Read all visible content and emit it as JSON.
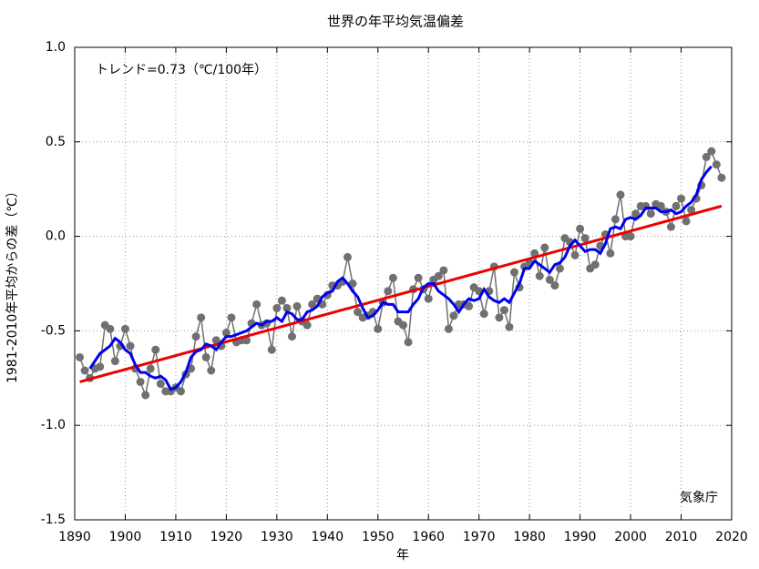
{
  "chart_data": {
    "type": "line",
    "title": "世界の年平均気温偏差",
    "xlabel": "年",
    "ylabel": "1981-2010年平均からの差（℃）",
    "annotations": [
      "トレンド=0.73（℃/100年）",
      "気象庁"
    ],
    "xlim": [
      1890,
      2020
    ],
    "xticks": [
      1890,
      1900,
      1910,
      1920,
      1930,
      1940,
      1950,
      1960,
      1970,
      1980,
      1990,
      2000,
      2010,
      2020
    ],
    "ylim": [
      -1.5,
      1.0
    ],
    "yticks": [
      {
        "value": 1.0,
        "label": "1.0"
      },
      0.5,
      {
        "value": 0.0,
        "label": "0.0"
      },
      -0.5,
      {
        "value": -1.0,
        "label": "-1.0"
      },
      -1.5
    ],
    "grid": true,
    "series": [
      {
        "color": "#707070",
        "marker": true,
        "x": [
          1891,
          1892,
          1893,
          1894,
          1895,
          1896,
          1897,
          1898,
          1899,
          1900,
          1901,
          1902,
          1903,
          1904,
          1905,
          1906,
          1907,
          1908,
          1909,
          1910,
          1911,
          1912,
          1913,
          1914,
          1915,
          1916,
          1917,
          1918,
          1919,
          1920,
          1921,
          1922,
          1923,
          1924,
          1925,
          1926,
          1927,
          1928,
          1929,
          1930,
          1931,
          1932,
          1933,
          1934,
          1935,
          1936,
          1937,
          1938,
          1939,
          1940,
          1941,
          1942,
          1943,
          1944,
          1945,
          1946,
          1947,
          1948,
          1949,
          1950,
          1951,
          1952,
          1953,
          1954,
          1955,
          1956,
          1957,
          1958,
          1959,
          1960,
          1961,
          1962,
          1963,
          1964,
          1965,
          1966,
          1967,
          1968,
          1969,
          1970,
          1971,
          1972,
          1973,
          1974,
          1975,
          1976,
          1977,
          1978,
          1979,
          1980,
          1981,
          1982,
          1983,
          1984,
          1985,
          1986,
          1987,
          1988,
          1989,
          1990,
          1991,
          1992,
          1993,
          1994,
          1995,
          1996,
          1997,
          1998,
          1999,
          2000,
          2001,
          2002,
          2003,
          2004,
          2005,
          2006,
          2007,
          2008,
          2009,
          2010,
          2011,
          2012,
          2013,
          2014,
          2015,
          2016,
          2017,
          2018
        ],
        "values": [
          -0.64,
          -0.71,
          -0.75,
          -0.7,
          -0.69,
          -0.47,
          -0.49,
          -0.66,
          -0.58,
          -0.49,
          -0.58,
          -0.7,
          -0.77,
          -0.84,
          -0.7,
          -0.6,
          -0.78,
          -0.82,
          -0.82,
          -0.8,
          -0.82,
          -0.73,
          -0.7,
          -0.53,
          -0.43,
          -0.64,
          -0.71,
          -0.55,
          -0.58,
          -0.51,
          -0.43,
          -0.56,
          -0.55,
          -0.55,
          -0.46,
          -0.36,
          -0.47,
          -0.46,
          -0.6,
          -0.38,
          -0.34,
          -0.38,
          -0.53,
          -0.37,
          -0.45,
          -0.47,
          -0.36,
          -0.33,
          -0.36,
          -0.31,
          -0.26,
          -0.26,
          -0.24,
          -0.11,
          -0.25,
          -0.4,
          -0.43,
          -0.42,
          -0.4,
          -0.49,
          -0.35,
          -0.29,
          -0.22,
          -0.45,
          -0.47,
          -0.56,
          -0.28,
          -0.22,
          -0.28,
          -0.33,
          -0.23,
          -0.21,
          -0.18,
          -0.49,
          -0.42,
          -0.36,
          -0.36,
          -0.37,
          -0.27,
          -0.29,
          -0.41,
          -0.29,
          -0.16,
          -0.43,
          -0.39,
          -0.48,
          -0.19,
          -0.27,
          -0.16,
          -0.14,
          -0.09,
          -0.21,
          -0.06,
          -0.23,
          -0.26,
          -0.17,
          -0.01,
          -0.03,
          -0.1,
          0.04,
          -0.01,
          -0.17,
          -0.15,
          -0.05,
          0.01,
          -0.09,
          0.09,
          0.22,
          0.0,
          0.0,
          0.12,
          0.16,
          0.16,
          0.12,
          0.17,
          0.16,
          0.13,
          0.05,
          0.16,
          0.2,
          0.08,
          0.14,
          0.2,
          0.27,
          0.42,
          0.45,
          0.38,
          0.31
        ]
      },
      {
        "color": "#ee0000",
        "x": [
          1891,
          2018
        ],
        "values": [
          -0.77,
          0.16
        ]
      },
      {
        "color": "#0000ee",
        "x": [
          1893,
          1894,
          1895,
          1896,
          1897,
          1898,
          1899,
          1900,
          1901,
          1902,
          1903,
          1904,
          1905,
          1906,
          1907,
          1908,
          1909,
          1910,
          1911,
          1912,
          1913,
          1914,
          1915,
          1916,
          1917,
          1918,
          1919,
          1920,
          1921,
          1922,
          1923,
          1924,
          1925,
          1926,
          1927,
          1928,
          1929,
          1930,
          1931,
          1932,
          1933,
          1934,
          1935,
          1936,
          1937,
          1938,
          1939,
          1940,
          1941,
          1942,
          1943,
          1944,
          1945,
          1946,
          1947,
          1948,
          1949,
          1950,
          1951,
          1952,
          1953,
          1954,
          1955,
          1956,
          1957,
          1958,
          1959,
          1960,
          1961,
          1962,
          1963,
          1964,
          1965,
          1966,
          1967,
          1968,
          1969,
          1970,
          1971,
          1972,
          1973,
          1974,
          1975,
          1976,
          1977,
          1978,
          1979,
          1980,
          1981,
          1982,
          1983,
          1984,
          1985,
          1986,
          1987,
          1988,
          1989,
          1990,
          1991,
          1992,
          1993,
          1994,
          1995,
          1996,
          1997,
          1998,
          1999,
          2000,
          2001,
          2002,
          2003,
          2004,
          2005,
          2006,
          2007,
          2008,
          2009,
          2010,
          2011,
          2012,
          2013,
          2014,
          2015,
          2016
        ],
        "values": [
          -0.7,
          -0.66,
          -0.62,
          -0.6,
          -0.58,
          -0.54,
          -0.56,
          -0.6,
          -0.62,
          -0.68,
          -0.72,
          -0.72,
          -0.74,
          -0.75,
          -0.74,
          -0.76,
          -0.81,
          -0.8,
          -0.77,
          -0.72,
          -0.64,
          -0.61,
          -0.6,
          -0.57,
          -0.58,
          -0.6,
          -0.56,
          -0.53,
          -0.53,
          -0.52,
          -0.51,
          -0.5,
          -0.48,
          -0.46,
          -0.47,
          -0.45,
          -0.45,
          -0.43,
          -0.45,
          -0.4,
          -0.41,
          -0.44,
          -0.44,
          -0.4,
          -0.39,
          -0.37,
          -0.32,
          -0.3,
          -0.29,
          -0.24,
          -0.22,
          -0.25,
          -0.29,
          -0.32,
          -0.38,
          -0.43,
          -0.42,
          -0.39,
          -0.35,
          -0.36,
          -0.36,
          -0.4,
          -0.4,
          -0.4,
          -0.36,
          -0.33,
          -0.27,
          -0.25,
          -0.25,
          -0.29,
          -0.31,
          -0.33,
          -0.36,
          -0.4,
          -0.36,
          -0.33,
          -0.34,
          -0.33,
          -0.28,
          -0.32,
          -0.34,
          -0.35,
          -0.33,
          -0.35,
          -0.3,
          -0.25,
          -0.17,
          -0.17,
          -0.13,
          -0.15,
          -0.17,
          -0.19,
          -0.15,
          -0.14,
          -0.11,
          -0.05,
          -0.02,
          -0.05,
          -0.08,
          -0.07,
          -0.07,
          -0.09,
          -0.04,
          0.04,
          0.05,
          0.04,
          0.09,
          0.1,
          0.09,
          0.11,
          0.15,
          0.15,
          0.15,
          0.13,
          0.13,
          0.14,
          0.12,
          0.13,
          0.16,
          0.18,
          0.22,
          0.3,
          0.34,
          0.37
        ]
      }
    ]
  }
}
